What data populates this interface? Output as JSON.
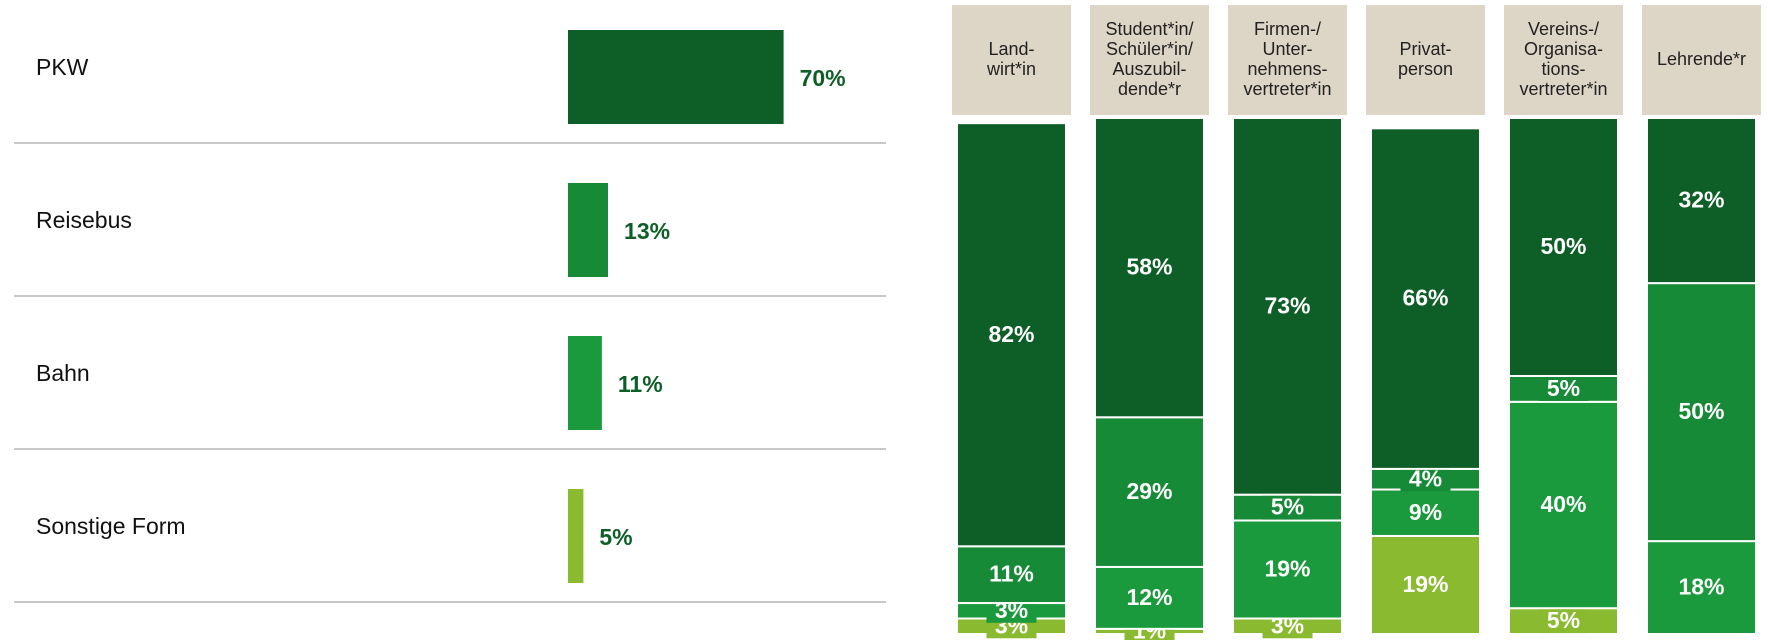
{
  "chart_data": [
    {
      "type": "hbar",
      "categories": [
        "PKW",
        "Reisebus",
        "Bahn",
        "Sonstige Form"
      ],
      "values": [
        70,
        13,
        11,
        5
      ],
      "value_labels": [
        "70%",
        "13%",
        "11%",
        "5%"
      ],
      "colors": [
        "#0e5e27",
        "#168a36",
        "#1a9a3c",
        "#8aba2f"
      ],
      "xlim": [
        0,
        100
      ]
    },
    {
      "type": "stacked-column",
      "categories": [
        "Land-\nwirt*in",
        "Student*in/\nSchüler*in/\nAuszubil-\ndende*r",
        "Firmen-/\nUnter-\nnehmens-\nvertreter*in",
        "Privat-\nperson",
        "Vereins-/\nOrganisa-\ntions-\nvertreter*in",
        "Lehrende*r"
      ],
      "ylim": [
        0,
        100
      ],
      "series": [
        {
          "color": "#8aba2f",
          "values": [
            3,
            1,
            3,
            19,
            5,
            0
          ],
          "value_labels": [
            "3%",
            "1%",
            "3%",
            "19%",
            "5%",
            null
          ]
        },
        {
          "color": "#1a9a3c",
          "values": [
            3,
            12,
            19,
            9,
            40,
            18
          ],
          "value_labels": [
            "3%",
            "12%",
            "19%",
            "9%",
            "40%",
            "18%"
          ]
        },
        {
          "color": "#168a36",
          "values": [
            11,
            29,
            5,
            4,
            5,
            50
          ],
          "value_labels": [
            "11%",
            "29%",
            "5%",
            "4%",
            "5%",
            "50%"
          ]
        },
        {
          "color": "#0e5e27",
          "values": [
            82,
            58,
            73,
            66,
            50,
            32
          ],
          "value_labels": [
            "82%",
            "58%",
            "73%",
            "66%",
            "50%",
            "32%"
          ]
        }
      ]
    }
  ]
}
